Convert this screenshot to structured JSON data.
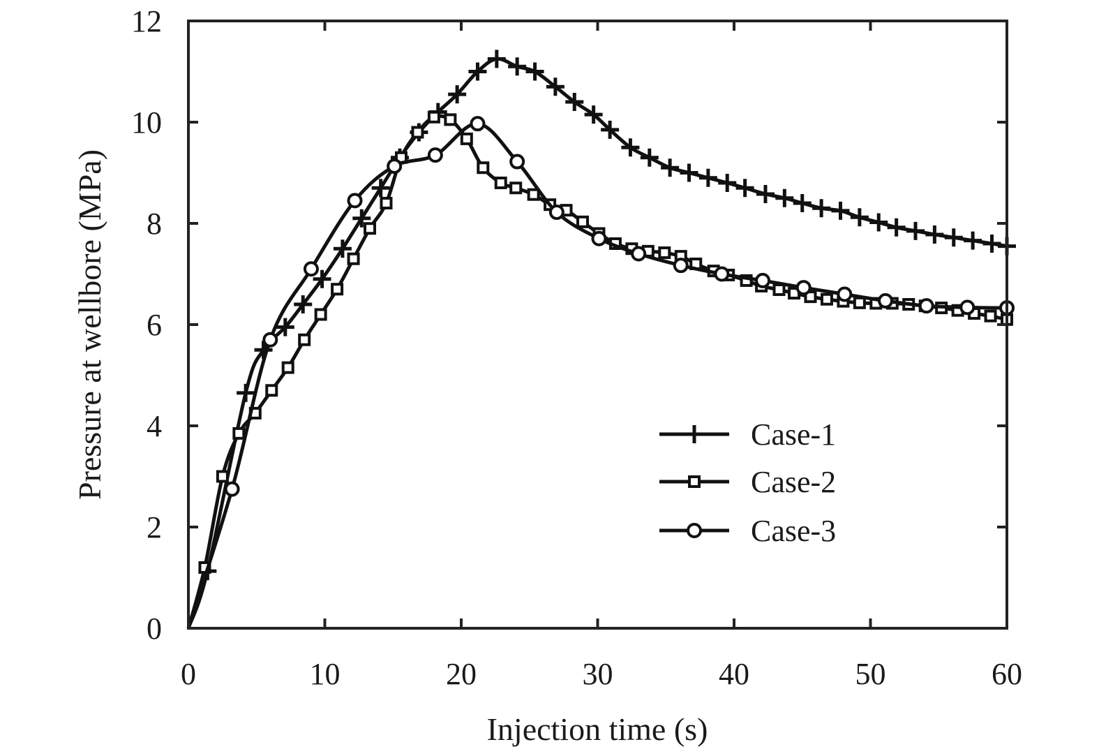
{
  "chart_data": {
    "type": "line",
    "title": "",
    "xlabel": "Injection time (s)",
    "ylabel": "Pressure at wellbore (MPa)",
    "xlim": [
      0,
      60
    ],
    "ylim": [
      0,
      12
    ],
    "xticks": [
      0,
      10,
      20,
      30,
      40,
      50,
      60
    ],
    "yticks": [
      0,
      2,
      4,
      6,
      8,
      10,
      12
    ],
    "grid": false,
    "legend_position": "lower-right",
    "line_color": "#111111",
    "series": [
      {
        "name": "Case-1",
        "marker": "plus",
        "x": [
          0,
          1.4,
          4.2,
          5.5,
          7.1,
          8.4,
          9.8,
          11.3,
          12.7,
          14.1,
          15.5,
          16.9,
          18.3,
          19.7,
          21.2,
          22.6,
          24.1,
          25.4,
          26.9,
          28.3,
          29.7,
          30.9,
          32.4,
          33.8,
          35.3,
          36.7,
          38.1,
          39.5,
          40.8,
          42.3,
          43.7,
          45.0,
          46.4,
          47.8,
          49.2,
          50.6,
          51.9,
          53.3,
          54.7,
          56.1,
          57.5,
          58.9,
          60
        ],
        "y": [
          0,
          1.13,
          4.65,
          5.5,
          5.95,
          6.4,
          6.9,
          7.5,
          8.1,
          8.7,
          9.3,
          9.8,
          10.2,
          10.55,
          11.0,
          11.25,
          11.1,
          11.0,
          10.7,
          10.4,
          10.15,
          9.85,
          9.5,
          9.3,
          9.1,
          9.0,
          8.9,
          8.8,
          8.7,
          8.58,
          8.5,
          8.4,
          8.3,
          8.25,
          8.12,
          8.02,
          7.92,
          7.85,
          7.78,
          7.72,
          7.66,
          7.6,
          7.55
        ]
      },
      {
        "name": "Case-2",
        "marker": "square",
        "x": [
          0,
          1.2,
          2.5,
          3.7,
          4.9,
          6.1,
          7.3,
          8.5,
          9.7,
          10.9,
          12.1,
          13.3,
          14.5,
          15.6,
          16.8,
          18.0,
          19.2,
          20.4,
          21.6,
          22.9,
          24.0,
          25.3,
          26.5,
          27.7,
          28.9,
          30.1,
          31.3,
          32.5,
          33.7,
          34.9,
          36.1,
          37.2,
          38.5,
          39.6,
          40.9,
          42.0,
          43.3,
          44.4,
          45.6,
          46.8,
          48.0,
          49.2,
          50.4,
          51.6,
          52.8,
          54.0,
          55.2,
          56.4,
          57.6,
          58.8,
          60
        ],
        "y": [
          0,
          1.2,
          3.0,
          3.85,
          4.25,
          4.7,
          5.15,
          5.7,
          6.2,
          6.7,
          7.3,
          7.9,
          8.4,
          9.3,
          9.8,
          10.1,
          10.05,
          9.67,
          9.1,
          8.8,
          8.7,
          8.57,
          8.37,
          8.26,
          8.03,
          7.8,
          7.6,
          7.5,
          7.45,
          7.42,
          7.35,
          7.2,
          7.06,
          6.98,
          6.87,
          6.76,
          6.69,
          6.62,
          6.55,
          6.5,
          6.46,
          6.43,
          6.42,
          6.42,
          6.4,
          6.37,
          6.33,
          6.28,
          6.22,
          6.17,
          6.1
        ]
      },
      {
        "name": "Case-3",
        "marker": "circle",
        "x": [
          0,
          3.2,
          6.0,
          9.0,
          12.2,
          15.1,
          18.1,
          21.2,
          24.1,
          27.0,
          30.1,
          33.0,
          36.1,
          39.1,
          42.1,
          45.1,
          48.1,
          51.1,
          54.1,
          57.1,
          60
        ],
        "y": [
          0,
          2.75,
          5.7,
          7.1,
          8.45,
          9.13,
          9.35,
          9.97,
          9.22,
          8.22,
          7.7,
          7.4,
          7.17,
          7.0,
          6.87,
          6.73,
          6.6,
          6.47,
          6.37,
          6.34,
          6.33
        ]
      }
    ]
  }
}
